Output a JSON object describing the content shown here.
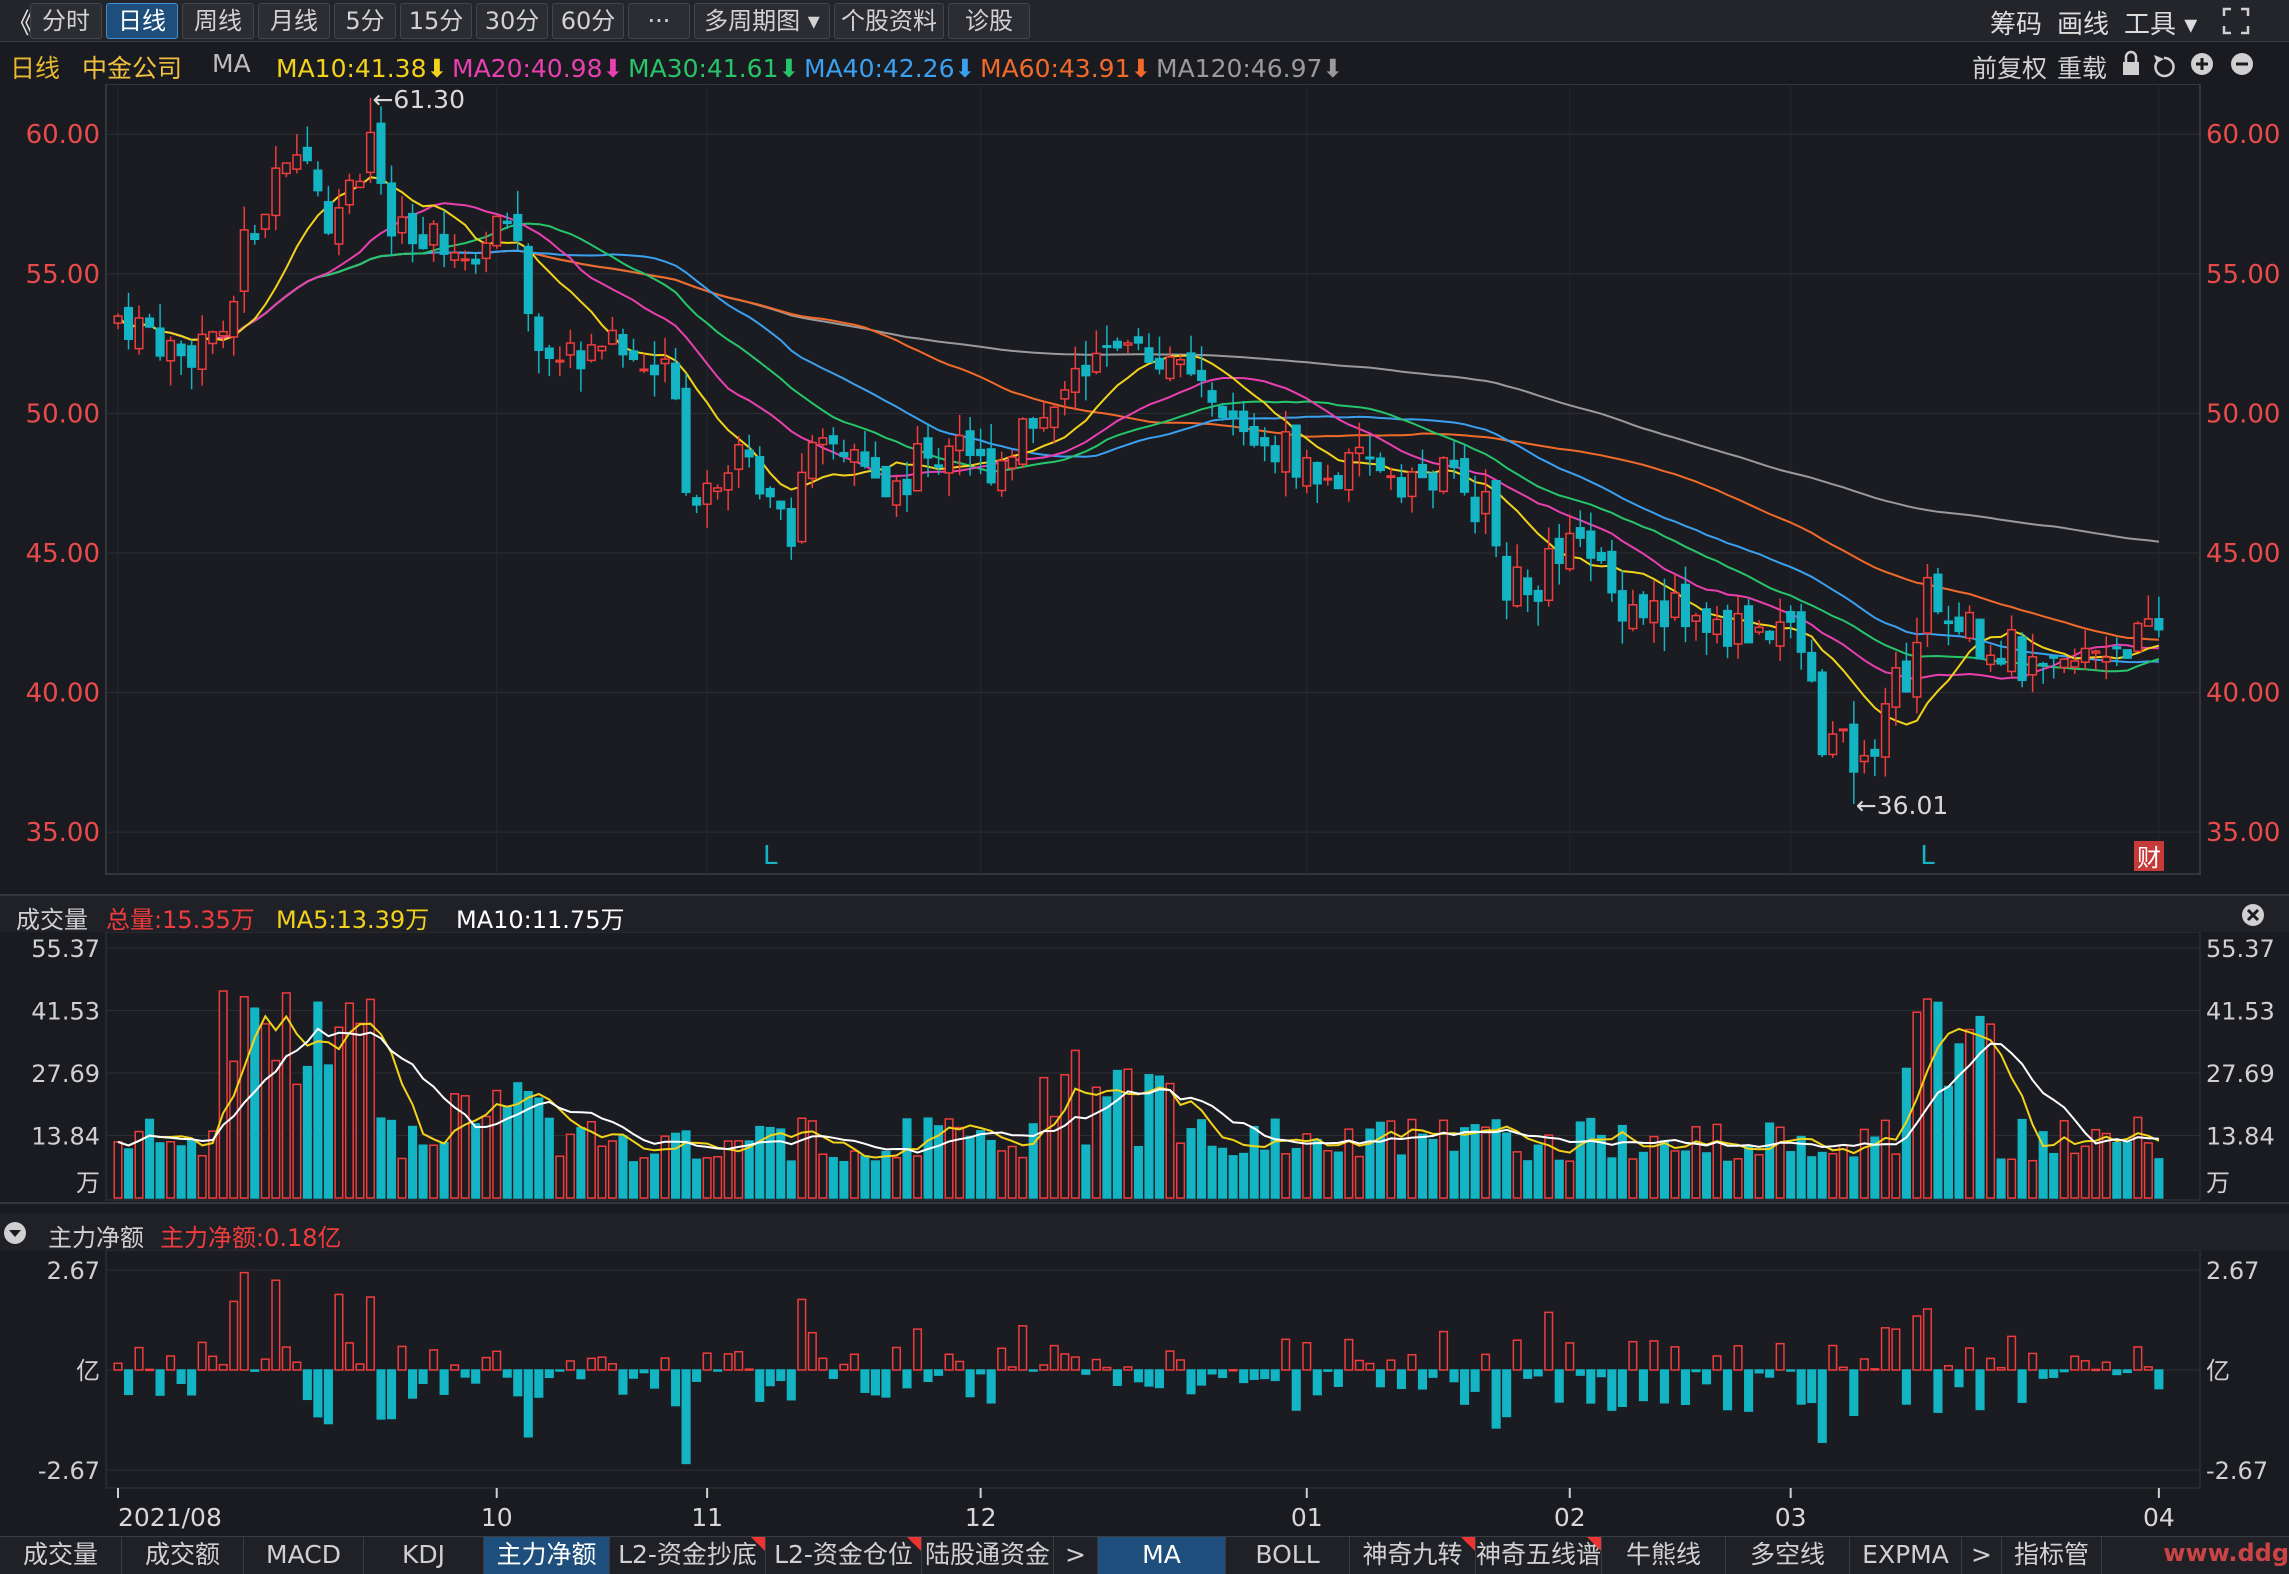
{
  "toolbar": {
    "back": "《",
    "tabs": [
      "分时",
      "日线",
      "周线",
      "月线",
      "5分",
      "15分",
      "30分",
      "60分",
      "···",
      "多周期图 ▾",
      "个股资料",
      "诊股"
    ],
    "active_tab": 1,
    "right": [
      "筹码",
      "画线",
      "工具 ▾"
    ]
  },
  "info": {
    "period": "日线",
    "stock": "中金公司",
    "ma_label": "MA",
    "ma": [
      {
        "label": "MA10:41.38",
        "color": "#f2d21b"
      },
      {
        "label": "MA20:40.98",
        "color": "#e840b0"
      },
      {
        "label": "MA30:41.61",
        "color": "#27c46a"
      },
      {
        "label": "MA40:42.26",
        "color": "#3aa0f0"
      },
      {
        "label": "MA60:43.91",
        "color": "#f06a2a"
      },
      {
        "label": "MA120:46.97",
        "color": "#9a9a9a"
      }
    ],
    "right": [
      "前复权",
      "重载"
    ]
  },
  "price_axis": [
    "60.00",
    "55.00",
    "50.00",
    "45.00",
    "40.00",
    "35.00"
  ],
  "annotations": {
    "high": "←61.30",
    "low": "←36.01",
    "marker": "L",
    "fin": "财"
  },
  "volume": {
    "title": "成交量",
    "total": "总量:15.35万",
    "ma5": "MA5:13.39万",
    "ma10": "MA10:11.75万",
    "axis": [
      "55.37",
      "41.53",
      "27.69",
      "13.84",
      "万"
    ]
  },
  "netflow": {
    "title": "主力净额",
    "value": "主力净额:0.18亿",
    "axis": [
      "2.67",
      "亿",
      "-2.67"
    ]
  },
  "x_axis": [
    "2021/08",
    "10",
    "11",
    "12",
    "01",
    "02",
    "03",
    "04"
  ],
  "bottom_tabs": [
    "成交量",
    "成交额",
    "MACD",
    "KDJ",
    "主力净额",
    "L2-资金抄底",
    "L2-资金仓位",
    "陆股通资金",
    ">",
    "MA",
    "BOLL",
    "神奇九转",
    "神奇五线谱",
    "牛熊线",
    "多空线",
    "EXPMA",
    ">",
    "指标管理"
  ],
  "watermark": "www.ddg",
  "colors": {
    "up": "#f03c3c",
    "down": "#13b4c4",
    "ma10": "#f2d21b",
    "ma20": "#e840b0",
    "ma30": "#27c46a",
    "ma40": "#3aa0f0",
    "ma60": "#f06a2a",
    "ma120": "#9a9a9a"
  },
  "chart_data": {
    "type": "candlestick",
    "xlabel": "",
    "ylabel": "",
    "ylim": [
      33.5,
      61.8
    ],
    "x_ticks": [
      {
        "label": "2021/08",
        "index": 0
      },
      {
        "label": "10",
        "index": 36
      },
      {
        "label": "11",
        "index": 56
      },
      {
        "label": "12",
        "index": 82
      },
      {
        "label": "01",
        "index": 113
      },
      {
        "label": "02",
        "index": 138
      },
      {
        "label": "03",
        "index": 159
      },
      {
        "label": "04",
        "index": 194
      }
    ],
    "anchors": [
      [
        0,
        53.5
      ],
      [
        3,
        53.0
      ],
      [
        6,
        52.0
      ],
      [
        9,
        53.0
      ],
      [
        10,
        52.2
      ],
      [
        12,
        56
      ],
      [
        13,
        57
      ],
      [
        15,
        58
      ],
      [
        18,
        59
      ],
      [
        20,
        57
      ],
      [
        22,
        58
      ],
      [
        24,
        60
      ],
      [
        26,
        56.5
      ],
      [
        28,
        56
      ],
      [
        31,
        56
      ],
      [
        33,
        55
      ],
      [
        35,
        56.8
      ],
      [
        36,
        57.5
      ],
      [
        38,
        56
      ],
      [
        40,
        52.5
      ],
      [
        43,
        52.0
      ],
      [
        46,
        52.8
      ],
      [
        49,
        51.8
      ],
      [
        51,
        51.5
      ],
      [
        53,
        51.3
      ],
      [
        54,
        47.5
      ],
      [
        56,
        47.5
      ],
      [
        58,
        48.5
      ],
      [
        60,
        48
      ],
      [
        62,
        47.5
      ],
      [
        64,
        46
      ],
      [
        65,
        48
      ],
      [
        68,
        48.8
      ],
      [
        70,
        48.5
      ],
      [
        72,
        47.3
      ],
      [
        74,
        47.4
      ],
      [
        76,
        48.3
      ],
      [
        78,
        48.5
      ],
      [
        80,
        49.5
      ],
      [
        82,
        48
      ],
      [
        84,
        48.5
      ],
      [
        86,
        49.5
      ],
      [
        88,
        50
      ],
      [
        90,
        50.5
      ],
      [
        92,
        52
      ],
      [
        94,
        53
      ],
      [
        96,
        53
      ],
      [
        98,
        52
      ],
      [
        100,
        51.5
      ],
      [
        102,
        51
      ],
      [
        104,
        50
      ],
      [
        106,
        49.5
      ],
      [
        108,
        49.2
      ],
      [
        110,
        48.8
      ],
      [
        112,
        48.5
      ],
      [
        114,
        47.5
      ],
      [
        116,
        47.7
      ],
      [
        118,
        48
      ],
      [
        120,
        48.2
      ],
      [
        122,
        47.8
      ],
      [
        124,
        47.5
      ],
      [
        126,
        47.8
      ],
      [
        128,
        47.3
      ],
      [
        130,
        46.5
      ],
      [
        132,
        44
      ],
      [
        134,
        43.5
      ],
      [
        136,
        44.5
      ],
      [
        138,
        45
      ],
      [
        140,
        45.2
      ],
      [
        142,
        43.5
      ],
      [
        144,
        43.2
      ],
      [
        146,
        43
      ],
      [
        148,
        43
      ],
      [
        150,
        42.5
      ],
      [
        152,
        42.2
      ],
      [
        154,
        42.3
      ],
      [
        156,
        42.3
      ],
      [
        158,
        42.5
      ],
      [
        160,
        41.5
      ],
      [
        162,
        38.5
      ],
      [
        164,
        38
      ],
      [
        166,
        37.3
      ],
      [
        167,
        38.5
      ],
      [
        168,
        40
      ],
      [
        170,
        40.8
      ],
      [
        172,
        44
      ],
      [
        174,
        42.8
      ],
      [
        176,
        42.2
      ],
      [
        178,
        41.8
      ],
      [
        180,
        41.5
      ],
      [
        182,
        40.5
      ],
      [
        184,
        40.5
      ],
      [
        186,
        41
      ],
      [
        188,
        41.5
      ],
      [
        190,
        41.8
      ],
      [
        194,
        42
      ]
    ],
    "high": 61.3,
    "low": 36.01,
    "volume_axis": [
      55.37,
      41.53,
      27.69,
      13.84
    ],
    "volume_unit": "万",
    "netflow_axis": [
      2.67,
      -2.67
    ],
    "netflow_unit": "亿",
    "series": [
      {
        "name": "MA10",
        "value": 41.38
      },
      {
        "name": "MA20",
        "value": 40.98
      },
      {
        "name": "MA30",
        "value": 41.61
      },
      {
        "name": "MA40",
        "value": 42.26
      },
      {
        "name": "MA60",
        "value": 43.91
      },
      {
        "name": "MA120",
        "value": 46.97
      }
    ]
  }
}
